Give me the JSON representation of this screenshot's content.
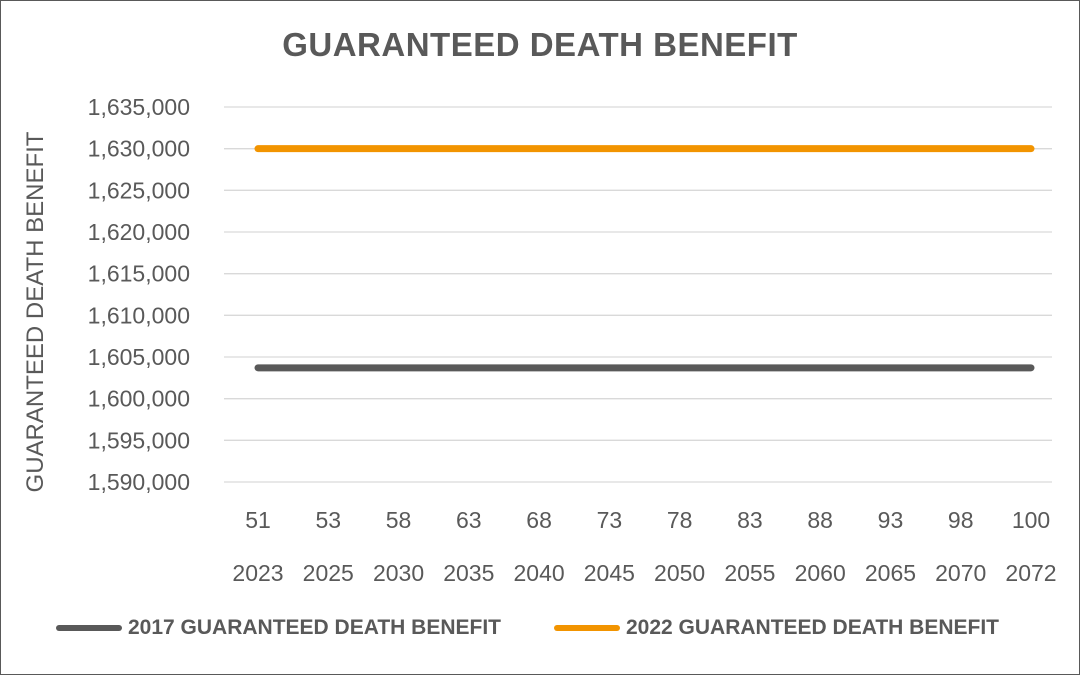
{
  "chart_data": {
    "type": "line",
    "title": "GUARANTEED DEATH BENEFIT",
    "ylabel": "GUARANTEED DEATH BENEFIT",
    "xlabel": "",
    "x_ages": [
      "51",
      "53",
      "58",
      "63",
      "68",
      "73",
      "78",
      "83",
      "88",
      "93",
      "98",
      "100"
    ],
    "x_years": [
      "2023",
      "2025",
      "2030",
      "2035",
      "2040",
      "2045",
      "2050",
      "2055",
      "2060",
      "2065",
      "2070",
      "2072"
    ],
    "ylim": [
      1590000,
      1635000
    ],
    "y_ticks": [
      1590000,
      1595000,
      1600000,
      1605000,
      1610000,
      1615000,
      1620000,
      1625000,
      1630000,
      1635000
    ],
    "y_tick_labels": [
      "1,590,000",
      "1,595,000",
      "1,600,000",
      "1,605,000",
      "1,610,000",
      "1,615,000",
      "1,620,000",
      "1,625,000",
      "1,630,000",
      "1,635,000"
    ],
    "grid": true,
    "legend_position": "bottom",
    "series": [
      {
        "name": "2017 GUARANTEED DEATH BENEFIT",
        "color": "#595959",
        "values": [
          1603700,
          1603700,
          1603700,
          1603700,
          1603700,
          1603700,
          1603700,
          1603700,
          1603700,
          1603700,
          1603700,
          1603700
        ]
      },
      {
        "name": "2022 GUARANTEED DEATH BENEFIT",
        "color": "#f29400",
        "values": [
          1630000,
          1630000,
          1630000,
          1630000,
          1630000,
          1630000,
          1630000,
          1630000,
          1630000,
          1630000,
          1630000,
          1630000
        ]
      }
    ]
  }
}
